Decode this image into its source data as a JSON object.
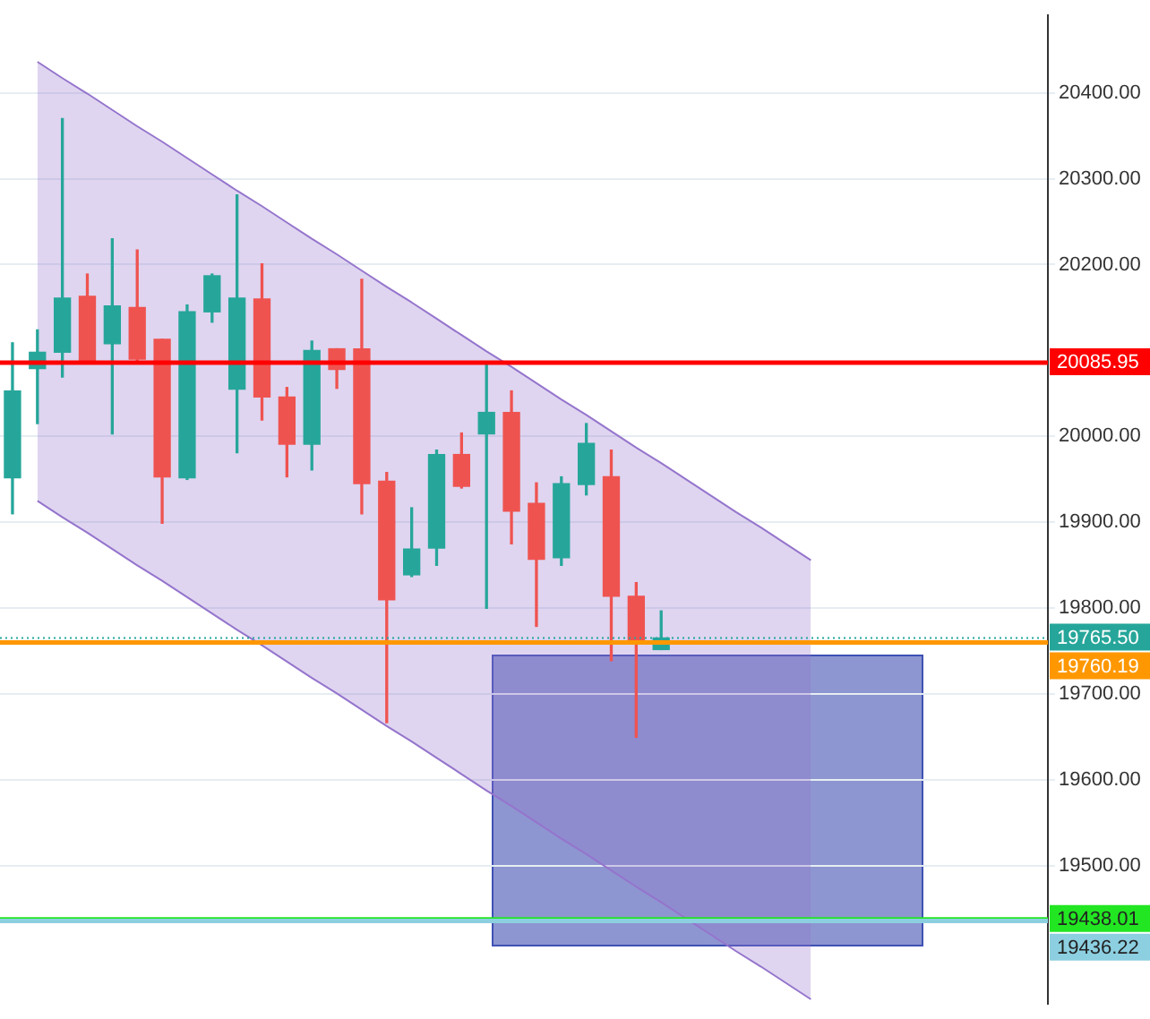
{
  "chart_data": {
    "type": "candlestick",
    "categories": [
      null,
      null,
      null,
      null,
      null,
      null,
      null,
      null,
      null,
      null,
      null,
      null,
      null,
      null,
      null,
      null,
      null,
      null,
      null,
      null,
      null,
      null,
      null,
      null,
      null,
      null,
      null,
      null,
      null,
      null,
      null,
      null,
      null,
      null,
      null,
      null,
      null,
      null,
      null,
      null,
      null,
      null
    ],
    "ohlc": [
      [
        19952,
        20109,
        19910,
        20053
      ],
      [
        20079,
        20124,
        20015,
        20098
      ],
      [
        20098,
        20370,
        20069,
        20161
      ],
      [
        20163,
        20189,
        20086,
        20087
      ],
      [
        20108,
        20230,
        20003,
        20152
      ],
      [
        20150,
        20217,
        20087,
        20090
      ],
      [
        20113,
        20113,
        19899,
        19953
      ],
      [
        19952,
        20153,
        19950,
        20145
      ],
      [
        20145,
        20189,
        20133,
        20187
      ],
      [
        20055,
        20281,
        19981,
        20161
      ],
      [
        20160,
        20201,
        20019,
        20046
      ],
      [
        20046,
        20057,
        19953,
        19991
      ],
      [
        19991,
        20111,
        19961,
        20100
      ],
      [
        20102,
        20102,
        20056,
        20078
      ],
      [
        20102,
        20183,
        19910,
        19945
      ],
      [
        19948,
        19958,
        19667,
        19810
      ],
      [
        19839,
        19917,
        19837,
        19869
      ],
      [
        19870,
        19984,
        19850,
        19979
      ],
      [
        19979,
        20004,
        19940,
        19942
      ],
      [
        20003,
        20087,
        19800,
        20028
      ],
      [
        20028,
        20053,
        19875,
        19913
      ],
      [
        19922,
        19946,
        19779,
        19857
      ],
      [
        19859,
        19953,
        19850,
        19945
      ],
      [
        19944,
        20015,
        19932,
        19992
      ],
      [
        19953,
        19984,
        19739,
        19814
      ],
      [
        19814,
        19830,
        19650,
        19763
      ],
      [
        19752,
        19797,
        19752,
        19765.5
      ],
      null,
      null,
      null,
      null,
      null,
      null,
      null,
      null,
      null,
      null,
      null,
      null,
      null,
      null,
      null
    ],
    "series": [
      {
        "color": "#9575cd",
        "values": [
          null,
          20436,
          20417,
          20399,
          20380,
          20361,
          20343,
          20324,
          20305,
          20286,
          20268,
          20249,
          20230,
          20212,
          20193,
          20174,
          20156,
          20137,
          20118,
          20099,
          20081,
          20062,
          20043,
          20025,
          20006,
          19987,
          19969,
          19950,
          19931,
          19912,
          19894,
          19875,
          19856,
          null,
          null,
          null,
          null,
          null,
          null,
          null,
          null,
          null
        ],
        "type": "area"
      },
      {
        "type": "line",
        "color": "#9575cd",
        "values": [
          null,
          19925,
          19906,
          19888,
          19869,
          19850,
          19832,
          19813,
          19794,
          19775,
          19757,
          19738,
          19719,
          19701,
          19682,
          19663,
          19645,
          19626,
          19607,
          19588,
          19570,
          19551,
          19532,
          19514,
          19495,
          19476,
          19458,
          19439,
          19420,
          19401,
          19383,
          19364,
          19345,
          null,
          null,
          null,
          null,
          null,
          null,
          null,
          null,
          null
        ]
      }
    ],
    "ylim": [
      19340,
      20490
    ],
    "yticks": [
      {
        "value": 19500,
        "label": "19500.00"
      },
      {
        "value": 19600,
        "label": "19600.00"
      },
      {
        "value": 19700,
        "label": "19700.00"
      },
      {
        "value": 19800,
        "label": "19800.00"
      },
      {
        "value": 19900,
        "label": "19900.00"
      },
      {
        "value": 20000,
        "label": "20000.00"
      },
      {
        "value": 20200,
        "label": "20200.00"
      },
      {
        "value": 20300,
        "label": "20300.00"
      },
      {
        "value": 20400,
        "label": "20400.00"
      }
    ],
    "grid": "y",
    "ref_lines": [
      {
        "axis": "y",
        "value": 20085.95,
        "label": "20085.95",
        "color": "#ff0000",
        "line_style": "solid"
      },
      {
        "axis": "y",
        "value": 19765.5,
        "label": "19765.50",
        "color": "#26a69a",
        "line_style": "dotted"
      },
      {
        "axis": "y",
        "value": 19760.19,
        "label": "19760.19",
        "color": "#ff9800",
        "line_style": "solid"
      },
      {
        "axis": "y",
        "value": 19438.01,
        "label": "19438.01",
        "color": "#22e622",
        "line_style": "solid"
      },
      {
        "axis": "y",
        "value": 19436.22,
        "label": "19436.22",
        "color": "#8ccfe0",
        "line_style": "solid"
      }
    ]
  }
}
